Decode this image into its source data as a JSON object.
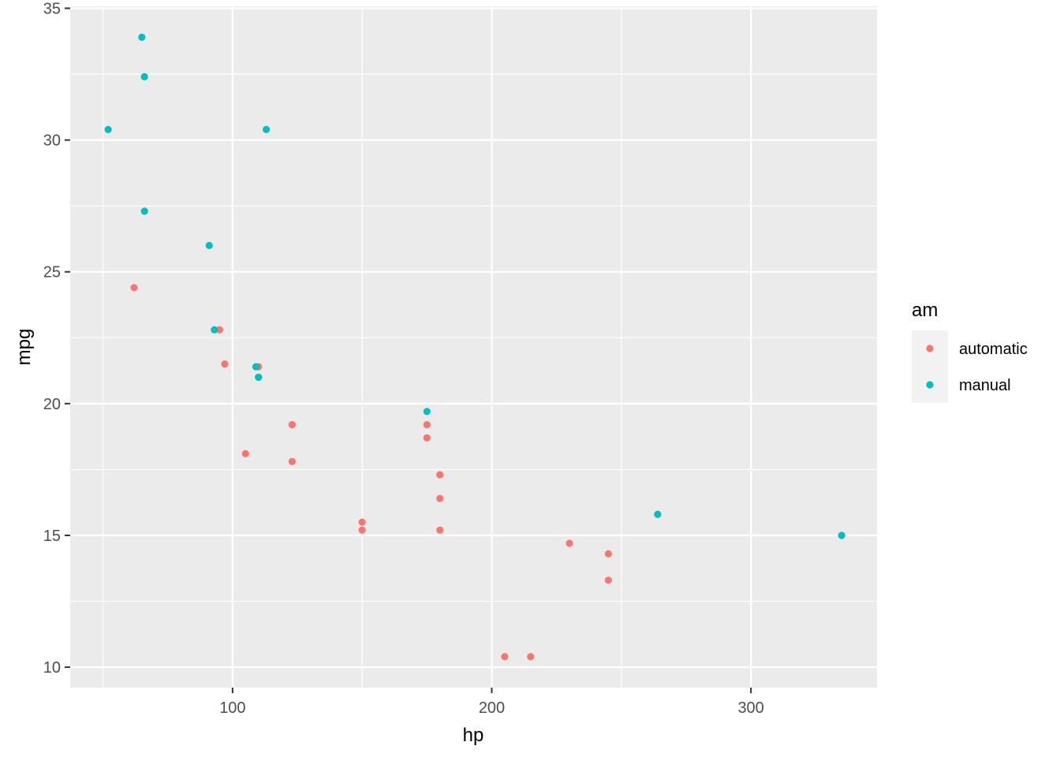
{
  "chart_data": {
    "type": "scatter",
    "xlabel": "hp",
    "ylabel": "mpg",
    "xlim": [
      37.35,
      348.65
    ],
    "ylim": [
      9.225,
      35.075
    ],
    "x_ticks": [
      100,
      200,
      300
    ],
    "y_ticks": [
      10,
      15,
      20,
      25,
      30,
      35
    ],
    "grid": true,
    "background": "#ebebeb",
    "gridline_color": "#ffffff",
    "legend": {
      "title": "am",
      "position": "right",
      "entries": [
        {
          "label": "automatic",
          "color": "#f8766d"
        },
        {
          "label": "manual",
          "color": "#00bfc4"
        }
      ]
    },
    "series": [
      {
        "name": "automatic",
        "color": "#f8766d",
        "points": [
          [
            110,
            21.4
          ],
          [
            175,
            18.7
          ],
          [
            105,
            18.1
          ],
          [
            245,
            14.3
          ],
          [
            62,
            24.4
          ],
          [
            95,
            22.8
          ],
          [
            123,
            19.2
          ],
          [
            123,
            17.8
          ],
          [
            180,
            16.4
          ],
          [
            180,
            17.3
          ],
          [
            180,
            15.2
          ],
          [
            205,
            10.4
          ],
          [
            215,
            10.4
          ],
          [
            230,
            14.7
          ],
          [
            97,
            21.5
          ],
          [
            150,
            15.5
          ],
          [
            150,
            15.2
          ],
          [
            245,
            13.3
          ],
          [
            175,
            19.2
          ]
        ]
      },
      {
        "name": "manual",
        "color": "#00bfc4",
        "points": [
          [
            110,
            21.0
          ],
          [
            110,
            21.0
          ],
          [
            93,
            22.8
          ],
          [
            66,
            32.4
          ],
          [
            52,
            30.4
          ],
          [
            65,
            33.9
          ],
          [
            66,
            27.3
          ],
          [
            91,
            26.0
          ],
          [
            113,
            30.4
          ],
          [
            264,
            15.8
          ],
          [
            175,
            19.7
          ],
          [
            335,
            15.0
          ],
          [
            109,
            21.4
          ]
        ]
      }
    ]
  }
}
